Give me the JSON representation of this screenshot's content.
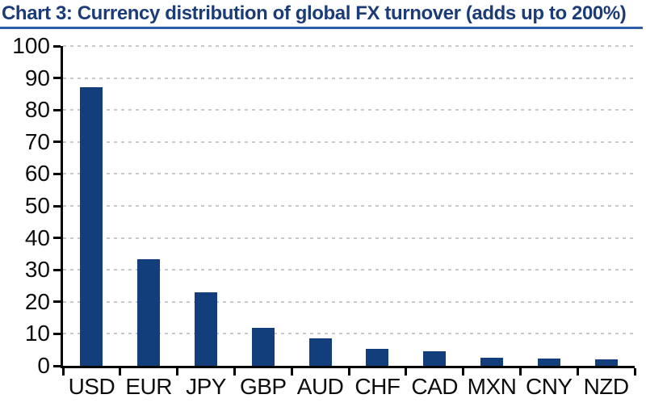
{
  "title": "Chart 3: Currency distribution of global FX turnover (adds up to 200%)",
  "chart_data": {
    "type": "bar",
    "title": "Chart 3: Currency distribution of global FX turnover (adds up to 200%)",
    "categories": [
      "USD",
      "EUR",
      "JPY",
      "GBP",
      "AUD",
      "CHF",
      "CAD",
      "MXN",
      "CNY",
      "NZD"
    ],
    "values": [
      87.0,
      33.4,
      23.0,
      11.8,
      8.6,
      5.2,
      4.6,
      2.5,
      2.2,
      2.0
    ],
    "xlabel": "",
    "ylabel": "",
    "ylim": [
      0,
      100
    ],
    "ytick_step": 10,
    "yticks": [
      0,
      10,
      20,
      30,
      40,
      50,
      60,
      70,
      80,
      90,
      100
    ],
    "grid": "horizontal-dashed",
    "legend": "none",
    "colors": {
      "bar": "#123e7c",
      "axis": "#000000",
      "gridline": "#c9c9c9",
      "title": "#1b3c77",
      "title_underline": "#2c5fa7",
      "tick_label": "#0d0d0d",
      "background": "#ffffff"
    }
  }
}
